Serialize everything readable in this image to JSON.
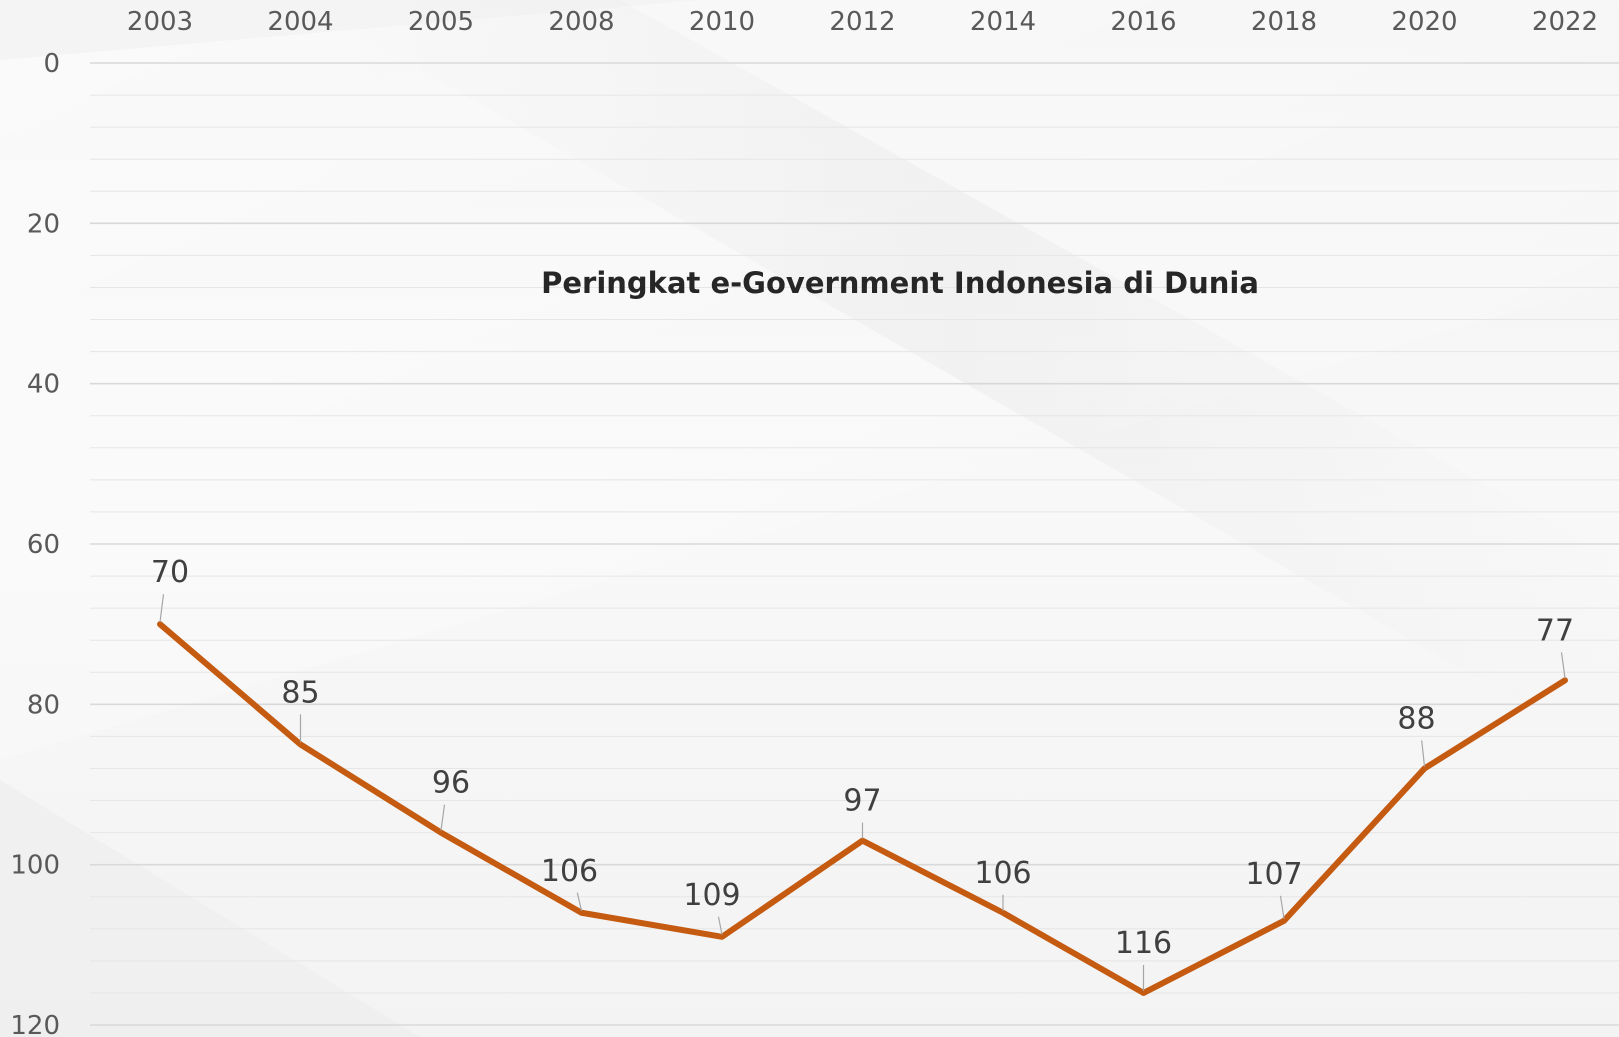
{
  "chart_data": {
    "type": "line",
    "title": "Peringkat e-Government Indonesia di Dunia",
    "xlabel": "",
    "ylabel": "",
    "categories": [
      "2003",
      "2004",
      "2005",
      "2008",
      "2010",
      "2012",
      "2014",
      "2016",
      "2018",
      "2020",
      "2022"
    ],
    "series": [
      {
        "values": [
          70,
          85,
          96,
          106,
          109,
          97,
          106,
          116,
          107,
          88,
          77
        ],
        "color": "#c55a11"
      }
    ],
    "ylim": [
      0,
      120
    ],
    "y_inverted": true,
    "y_ticks": [
      "0",
      "20",
      "40",
      "60",
      "80",
      "100",
      "120"
    ],
    "y_tick_values": [
      0,
      20,
      40,
      60,
      80,
      100,
      120
    ],
    "x_axis_position": "top",
    "grid": true,
    "data_labels": [
      "70",
      "85",
      "96",
      "106",
      "109",
      "97",
      "106",
      "116",
      "107",
      "88",
      "77"
    ],
    "gridline_color": "#d9d9d9",
    "text_color": "#595959"
  }
}
